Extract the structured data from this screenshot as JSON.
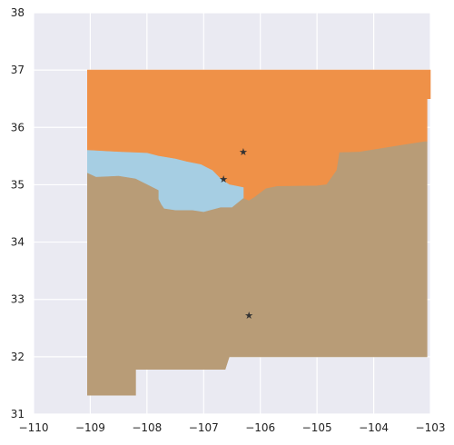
{
  "chart_data": {
    "type": "map",
    "xlim": [
      -110,
      -103
    ],
    "ylim": [
      31,
      38
    ],
    "x_ticks": [
      "−110",
      "−109",
      "−108",
      "−107",
      "−106",
      "−105",
      "−104",
      "−103"
    ],
    "y_ticks": [
      "31",
      "32",
      "33",
      "34",
      "35",
      "36",
      "37",
      "38"
    ],
    "grid": true,
    "background_color": "#EAEAF2",
    "grid_color": "#FFFFFF",
    "regions": [
      {
        "id": "north",
        "color": "#EF9148",
        "polygon": [
          [
            -109.05,
            37.0
          ],
          [
            -103.0,
            37.0
          ],
          [
            -103.0,
            36.5
          ],
          [
            -103.06,
            36.5
          ],
          [
            -103.06,
            35.75
          ],
          [
            -103.1,
            35.75
          ],
          [
            -103.5,
            35.69
          ],
          [
            -104.25,
            35.57
          ],
          [
            -104.6,
            35.56
          ],
          [
            -104.65,
            35.25
          ],
          [
            -104.83,
            35.0
          ],
          [
            -105.0,
            34.98
          ],
          [
            -105.7,
            34.97
          ],
          [
            -105.9,
            34.93
          ],
          [
            -106.1,
            34.78
          ],
          [
            -106.2,
            34.72
          ],
          [
            -106.3,
            34.76
          ],
          [
            -106.3,
            34.95
          ],
          [
            -106.55,
            35.0
          ],
          [
            -106.7,
            35.1
          ],
          [
            -106.85,
            35.25
          ],
          [
            -106.95,
            35.3
          ],
          [
            -107.05,
            35.35
          ],
          [
            -107.3,
            35.4
          ],
          [
            -107.5,
            35.45
          ],
          [
            -107.8,
            35.5
          ],
          [
            -108.0,
            35.55
          ],
          [
            -108.5,
            35.57
          ],
          [
            -109.05,
            35.6
          ]
        ]
      },
      {
        "id": "central",
        "color": "#A6CEE3",
        "polygon": [
          [
            -109.05,
            35.6
          ],
          [
            -108.5,
            35.57
          ],
          [
            -108.0,
            35.55
          ],
          [
            -107.8,
            35.5
          ],
          [
            -107.5,
            35.45
          ],
          [
            -107.3,
            35.4
          ],
          [
            -107.05,
            35.35
          ],
          [
            -106.95,
            35.3
          ],
          [
            -106.85,
            35.25
          ],
          [
            -106.7,
            35.1
          ],
          [
            -106.55,
            35.0
          ],
          [
            -106.3,
            34.95
          ],
          [
            -106.3,
            34.76
          ],
          [
            -106.5,
            34.6
          ],
          [
            -106.6,
            34.6
          ],
          [
            -106.7,
            34.6
          ],
          [
            -107.0,
            34.52
          ],
          [
            -107.2,
            34.55
          ],
          [
            -107.5,
            34.55
          ],
          [
            -107.7,
            34.58
          ],
          [
            -107.75,
            34.65
          ],
          [
            -107.8,
            34.75
          ],
          [
            -107.8,
            34.9
          ],
          [
            -108.0,
            35.0
          ],
          [
            -108.2,
            35.1
          ],
          [
            -108.5,
            35.15
          ],
          [
            -108.9,
            35.13
          ],
          [
            -109.05,
            35.2
          ]
        ]
      },
      {
        "id": "south",
        "color": "#B89C77",
        "polygon": [
          [
            -109.05,
            35.2
          ],
          [
            -108.9,
            35.13
          ],
          [
            -108.5,
            35.15
          ],
          [
            -108.2,
            35.1
          ],
          [
            -108.0,
            35.0
          ],
          [
            -107.8,
            34.9
          ],
          [
            -107.8,
            34.75
          ],
          [
            -107.75,
            34.65
          ],
          [
            -107.7,
            34.58
          ],
          [
            -107.5,
            34.55
          ],
          [
            -107.2,
            34.55
          ],
          [
            -107.0,
            34.52
          ],
          [
            -106.7,
            34.6
          ],
          [
            -106.6,
            34.6
          ],
          [
            -106.5,
            34.6
          ],
          [
            -106.3,
            34.76
          ],
          [
            -106.2,
            34.72
          ],
          [
            -106.1,
            34.78
          ],
          [
            -105.9,
            34.93
          ],
          [
            -105.7,
            34.97
          ],
          [
            -105.0,
            34.98
          ],
          [
            -104.83,
            35.0
          ],
          [
            -104.65,
            35.25
          ],
          [
            -104.6,
            35.56
          ],
          [
            -104.25,
            35.57
          ],
          [
            -103.5,
            35.69
          ],
          [
            -103.1,
            35.75
          ],
          [
            -103.06,
            35.75
          ],
          [
            -103.06,
            32.0
          ],
          [
            -106.0,
            32.0
          ],
          [
            -106.55,
            32.0
          ],
          [
            -106.62,
            31.78
          ],
          [
            -108.2,
            31.78
          ],
          [
            -108.2,
            31.33
          ],
          [
            -109.05,
            31.33
          ]
        ]
      }
    ],
    "markers": [
      {
        "id": "marker-1",
        "x": -106.3,
        "y": 35.58,
        "symbol": "★",
        "color": "#333333"
      },
      {
        "id": "marker-2",
        "x": -106.65,
        "y": 35.1,
        "symbol": "★",
        "color": "#333333"
      },
      {
        "id": "marker-3",
        "x": -106.2,
        "y": 32.73,
        "symbol": "★",
        "color": "#333333"
      }
    ]
  }
}
